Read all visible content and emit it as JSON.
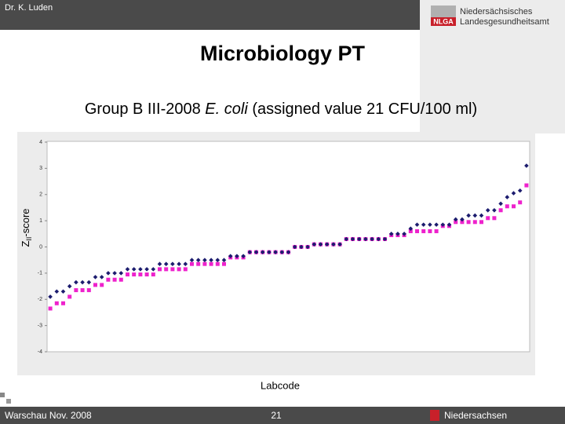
{
  "header": {
    "author": "Dr. K. Luden",
    "logo_mark": "NLGA",
    "logo_line1": "Niedersächsisches",
    "logo_line2": "Landesgesundheitsamt"
  },
  "footer": {
    "left": "Warschau Nov. 2008",
    "page": "21",
    "right": "Niedersachsen"
  },
  "title": "Microbiology PT",
  "subtitle": [
    "Group B III-2008 ",
    "E. coli",
    " (assigned value 21 CFU/100 ml)"
  ],
  "chart_data": {
    "type": "scatter",
    "y_label": {
      "main": "Z",
      "sub": "II",
      "rest": "-score"
    },
    "x_label": "Labcode",
    "categories": [
      null,
      null,
      null,
      null,
      null,
      null,
      null,
      null,
      null,
      null,
      null,
      null,
      null,
      null,
      null,
      null,
      null,
      null,
      null,
      null,
      null,
      null,
      null,
      null,
      null,
      null,
      null,
      null,
      null,
      null,
      null,
      null,
      null,
      null,
      null,
      null,
      null,
      null,
      null,
      null,
      null,
      null,
      null,
      null,
      null,
      null,
      null,
      null,
      null,
      null,
      null,
      null,
      null,
      null,
      null,
      null,
      null,
      null,
      null,
      null,
      null,
      null,
      null,
      null,
      null,
      null,
      null,
      null,
      null,
      null,
      null,
      null,
      null,
      null,
      null
    ],
    "series": [
      {
        "color": "#ee22cc",
        "marker": "square",
        "values": [
          -2.35,
          -2.15,
          -2.15,
          -1.9,
          -1.65,
          -1.65,
          -1.65,
          -1.45,
          -1.45,
          -1.25,
          -1.25,
          -1.25,
          -1.05,
          -1.05,
          -1.05,
          -1.05,
          -1.05,
          -0.85,
          -0.85,
          -0.85,
          -0.85,
          -0.85,
          -0.65,
          -0.65,
          -0.65,
          -0.65,
          -0.65,
          -0.65,
          -0.4,
          -0.4,
          -0.4,
          -0.2,
          -0.2,
          -0.2,
          -0.2,
          -0.2,
          -0.2,
          -0.2,
          0,
          0,
          0,
          0.1,
          0.1,
          0.1,
          0.1,
          0.1,
          0.3,
          0.3,
          0.3,
          0.3,
          0.3,
          0.3,
          0.3,
          0.45,
          0.45,
          0.45,
          0.6,
          0.6,
          0.6,
          0.6,
          0.6,
          0.8,
          0.8,
          0.95,
          0.95,
          0.95,
          0.95,
          0.95,
          1.1,
          1.1,
          1.4,
          1.55,
          1.55,
          1.7,
          2.35
        ]
      },
      {
        "color": "#1c1c6e",
        "marker": "diamond",
        "values": [
          -1.9,
          -1.7,
          -1.7,
          -1.5,
          -1.35,
          -1.35,
          -1.35,
          -1.15,
          -1.15,
          -1.0,
          -1.0,
          -1.0,
          -0.85,
          -0.85,
          -0.85,
          -0.85,
          -0.85,
          -0.65,
          -0.65,
          -0.65,
          -0.65,
          -0.65,
          -0.5,
          -0.5,
          -0.5,
          -0.5,
          -0.5,
          -0.5,
          -0.35,
          -0.35,
          -0.35,
          -0.2,
          -0.2,
          -0.2,
          -0.2,
          -0.2,
          -0.2,
          -0.2,
          0,
          0,
          0,
          0.1,
          0.1,
          0.1,
          0.1,
          0.1,
          0.3,
          0.3,
          0.3,
          0.3,
          0.3,
          0.3,
          0.3,
          0.5,
          0.5,
          0.5,
          0.7,
          0.85,
          0.85,
          0.85,
          0.85,
          0.85,
          0.85,
          1.05,
          1.05,
          1.2,
          1.2,
          1.2,
          1.4,
          1.4,
          1.65,
          1.9,
          2.05,
          2.15,
          3.1
        ]
      }
    ],
    "ylim": [
      -4,
      4
    ],
    "yticks": [
      -4,
      -3,
      -2,
      -1,
      0,
      1,
      2,
      3,
      4
    ],
    "grid": false
  }
}
